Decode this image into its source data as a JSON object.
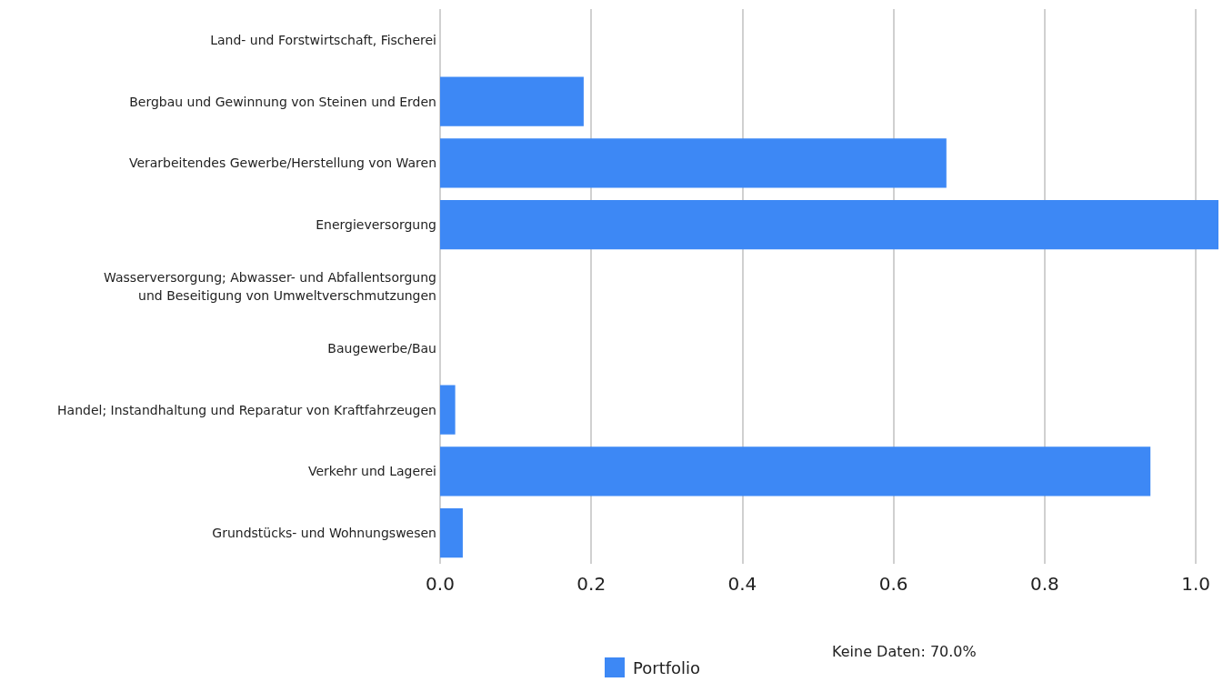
{
  "chart_data": {
    "type": "bar",
    "orientation": "horizontal",
    "categories": [
      "Land- und Forstwirtschaft, Fischerei",
      "Bergbau und Gewinnung von Steinen und Erden",
      "Verarbeitendes Gewerbe/Herstellung von Waren",
      "Energieversorgung",
      "Wasserversorgung; Abwasser- und Abfallentsorgung\nund Beseitigung von Umweltverschmutzungen",
      "Baugewerbe/Bau",
      "Handel; Instandhaltung und Reparatur von Kraftfahrzeugen",
      "Verkehr und Lagerei",
      "Grundstücks- und Wohnungswesen"
    ],
    "series": [
      {
        "name": "Portfolio",
        "color": "#3d88f5",
        "values": [
          0,
          0.19,
          0.67,
          1.03,
          0,
          0,
          0.02,
          0.94,
          0.03
        ]
      }
    ],
    "xlim": [
      0,
      1.03
    ],
    "xticks": [
      {
        "value": 0,
        "label": "0.0"
      },
      {
        "value": 0.2,
        "label": "0.2"
      },
      {
        "value": 0.4,
        "label": "0.4"
      },
      {
        "value": 0.6,
        "label": "0.6"
      },
      {
        "value": 0.8,
        "label": "0.8"
      },
      {
        "value": 1,
        "label": "1.0"
      }
    ],
    "grid": "x",
    "legend": "bottom",
    "annotations": [
      "Keine Daten: 70.0%"
    ]
  }
}
